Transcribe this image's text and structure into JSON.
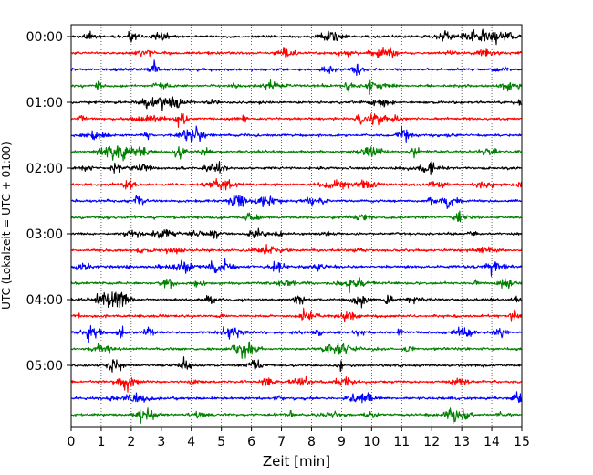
{
  "chart_data": {
    "type": "line",
    "title": "",
    "xlabel": "Zeit  [min]",
    "ylabel": "UTC (Lokalzeit = UTC + 01:00)",
    "xlim": [
      0,
      15
    ],
    "x_ticks": [
      "0",
      "1",
      "2",
      "3",
      "4",
      "5",
      "6",
      "7",
      "8",
      "9",
      "10",
      "11",
      "12",
      "13",
      "14",
      "15"
    ],
    "y_ticks": [
      "00:00",
      "01:00",
      "02:00",
      "03:00",
      "04:00",
      "05:00"
    ],
    "grid": "vertical dotted at every minute",
    "trace_interval_min": 15,
    "trace_color_cycle": [
      "#000000",
      "#ff0000",
      "#0000ff",
      "#008000"
    ],
    "traces": [
      {
        "start": "00:00",
        "color": "#000000"
      },
      {
        "start": "00:15",
        "color": "#ff0000"
      },
      {
        "start": "00:30",
        "color": "#0000ff"
      },
      {
        "start": "00:45",
        "color": "#008000"
      },
      {
        "start": "01:00",
        "color": "#000000"
      },
      {
        "start": "01:15",
        "color": "#ff0000"
      },
      {
        "start": "01:30",
        "color": "#0000ff"
      },
      {
        "start": "01:45",
        "color": "#008000"
      },
      {
        "start": "02:00",
        "color": "#000000"
      },
      {
        "start": "02:15",
        "color": "#ff0000"
      },
      {
        "start": "02:30",
        "color": "#0000ff"
      },
      {
        "start": "02:45",
        "color": "#008000"
      },
      {
        "start": "03:00",
        "color": "#000000"
      },
      {
        "start": "03:15",
        "color": "#ff0000"
      },
      {
        "start": "03:30",
        "color": "#0000ff"
      },
      {
        "start": "03:45",
        "color": "#008000"
      },
      {
        "start": "04:00",
        "color": "#000000"
      },
      {
        "start": "04:15",
        "color": "#ff0000"
      },
      {
        "start": "04:30",
        "color": "#0000ff"
      },
      {
        "start": "04:45",
        "color": "#008000"
      },
      {
        "start": "05:00",
        "color": "#000000"
      },
      {
        "start": "05:15",
        "color": "#ff0000"
      },
      {
        "start": "05:30",
        "color": "#0000ff"
      },
      {
        "start": "05:45",
        "color": "#008000"
      }
    ]
  }
}
